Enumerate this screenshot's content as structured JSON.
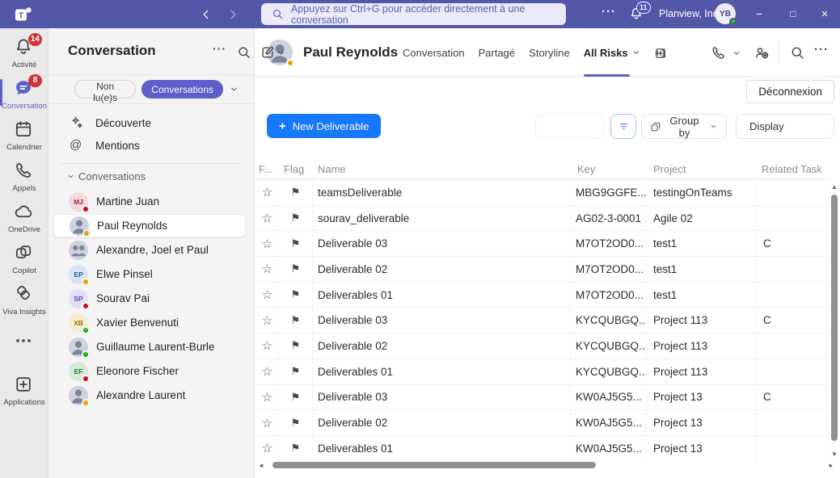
{
  "colors": {
    "accent": "#5B5FC7",
    "titlebar": "#5257A7",
    "badge_red": "#D13438",
    "busy": "#C50F1F",
    "away": "#EAA300",
    "available": "#13A10E",
    "primary_blue": "#1677FF"
  },
  "icons": {
    "star": "☆",
    "flag": "⚑",
    "more": "···",
    "plus": "+",
    "minimize": "−",
    "maximize": "□",
    "close": "×",
    "up_arrow": "▲",
    "down_arrow": "▼",
    "left_arrow": "◄",
    "right_arrow": "►"
  },
  "titlebar": {
    "search_placeholder": "Appuyez sur Ctrl+G pour accéder directement à une conversation",
    "notifications": "11",
    "org": "Planview, Inc.",
    "user_initials": "YB"
  },
  "rail": {
    "items": [
      {
        "id": "rail-item-activite",
        "icon": "bell",
        "label": "Activité",
        "badge": "14"
      },
      {
        "id": "rail-item-conversation",
        "icon": "chat-filled",
        "label": "Conversation",
        "badge": "8",
        "state": "active"
      },
      {
        "id": "rail-item-calendrier",
        "icon": "calendar",
        "label": "Calendrier"
      },
      {
        "id": "rail-item-appels",
        "icon": "phone",
        "label": "Appels"
      },
      {
        "id": "rail-item-onedrive",
        "icon": "cloud",
        "label": "OneDrive"
      },
      {
        "id": "rail-item-copilot",
        "icon": "copilot",
        "label": "Copilot"
      },
      {
        "id": "rail-item-viva-insights",
        "icon": "viva",
        "label": "Viva Insights"
      },
      {
        "id": "rail-item-more",
        "icon": "more-h",
        "label": "",
        "state": "more"
      },
      {
        "id": "rail-item-applications",
        "icon": "apps",
        "label": "Applications",
        "state": "apps"
      }
    ]
  },
  "sidebar": {
    "title": "Conversation",
    "filter_tabs": [
      {
        "label": "Non lu(e)s"
      },
      {
        "label": "Conversations",
        "state": "active"
      }
    ],
    "shortcuts": [
      {
        "icon": "sparkle",
        "label": "Découverte"
      },
      {
        "icon": "mention",
        "label": "Mentions"
      }
    ],
    "section_label": "Conversations",
    "chats": [
      {
        "name": "Martine Juan",
        "initials": "MJ",
        "avatar_bg": "#F5D9DC",
        "avatar_color": "#A4262C",
        "status": "busy"
      },
      {
        "name": "Paul Reynolds",
        "photo": true,
        "status": "away",
        "state": "selected"
      },
      {
        "name": "Alexandre, Joel et Paul",
        "group": true
      },
      {
        "name": "Elwe Pinsel",
        "initials": "EP",
        "avatar_bg": "#D6E4F5",
        "avatar_color": "#2B5797",
        "status": "away"
      },
      {
        "name": "Sourav Pai",
        "initials": "SP",
        "avatar_bg": "#E4DFF5",
        "avatar_color": "#6450B8",
        "status": "busy"
      },
      {
        "name": "Xavier Benvenuti",
        "initials": "XB",
        "avatar_bg": "#F5EDD2",
        "avatar_color": "#8E7408",
        "status": "available"
      },
      {
        "name": "Guillaume Laurent-Burle",
        "photo": true,
        "status": "available"
      },
      {
        "name": "Eleonore Fischer",
        "initials": "EF",
        "avatar_bg": "#D5EBD9",
        "avatar_color": "#1F7A34",
        "status": "busy"
      },
      {
        "name": "Alexandre Laurent",
        "photo": true,
        "status": "away"
      }
    ]
  },
  "main": {
    "chat_name": "Paul Reynolds",
    "chat_status": "away",
    "tabs": [
      {
        "label": "Conversation"
      },
      {
        "label": "Partagé"
      },
      {
        "label": "Storyline"
      },
      {
        "label": "All Risks",
        "state": "active",
        "chevron": true
      },
      {
        "label": "+1"
      }
    ],
    "app": {
      "logout_label": "Déconnexion",
      "new_deliverable_label": "New Deliverable",
      "filter_value": "",
      "group_by_label": "Group by",
      "display_label": "Display",
      "table": {
        "columns": [
          {
            "label": "F..."
          },
          {
            "label": "Flag"
          },
          {
            "label": "Name"
          },
          {
            "label": "Key"
          },
          {
            "label": "Project"
          },
          {
            "label": "Related Task"
          }
        ],
        "rows": [
          {
            "name": "teamsDeliverable",
            "key": "MBG9GGFE...",
            "project": "testingOnTeams",
            "related": ""
          },
          {
            "name": "sourav_deliverable",
            "key": "AG02-3-0001",
            "project": "Agile 02",
            "related": ""
          },
          {
            "name": "Deliverable 03",
            "key": "M7OT2OD0...",
            "project": "test1",
            "related": "C"
          },
          {
            "name": "Deliverable 02",
            "key": "M7OT2OD0...",
            "project": "test1",
            "related": ""
          },
          {
            "name": "Deliverables 01",
            "key": "M7OT2OD0...",
            "project": "test1",
            "related": ""
          },
          {
            "name": "Deliverable 03",
            "key": "KYCQUBGQ...",
            "project": "Project 113",
            "related": "C"
          },
          {
            "name": "Deliverable 02",
            "key": "KYCQUBGQ...",
            "project": "Project 113",
            "related": ""
          },
          {
            "name": "Deliverables 01",
            "key": "KYCQUBGQ...",
            "project": "Project 113",
            "related": ""
          },
          {
            "name": "Deliverable 03",
            "key": "KW0AJ5G5...",
            "project": "Project 13",
            "related": "C"
          },
          {
            "name": "Deliverable 02",
            "key": "KW0AJ5G5...",
            "project": "Project 13",
            "related": ""
          },
          {
            "name": "Deliverables 01",
            "key": "KW0AJ5G5...",
            "project": "Project 13",
            "related": ""
          }
        ]
      }
    }
  }
}
